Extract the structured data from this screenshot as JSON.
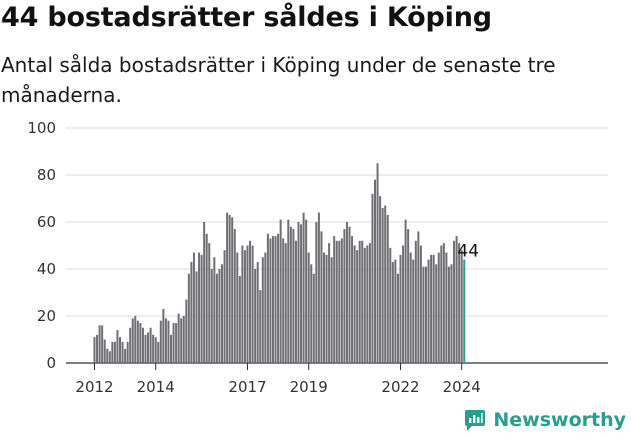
{
  "title": "44 bostadsrätter såldes i Köping",
  "subtitle": "Antal sålda bostadsrätter i Köping under de senaste tre månaderna.",
  "brand": {
    "name": "Newsworthy",
    "logo_icon": "newsworthy-chart-icon"
  },
  "colors": {
    "bar": "#6f6f73",
    "highlight": "#2a9d8f",
    "grid": "#dddddd",
    "axis": "#333333"
  },
  "chart_data": {
    "type": "bar",
    "title": "44 bostadsrätter såldes i Köping",
    "xlabel": "",
    "ylabel": "",
    "ylim": [
      0,
      100
    ],
    "yticks": [
      "0",
      "20",
      "40",
      "60",
      "80",
      "100"
    ],
    "start": "2012-01",
    "xtick_labels": [
      {
        "label": "2012",
        "month_index": 0
      },
      {
        "label": "2014",
        "month_index": 24
      },
      {
        "label": "2017",
        "month_index": 60
      },
      {
        "label": "2019",
        "month_index": 84
      },
      {
        "label": "2022",
        "month_index": 120
      },
      {
        "label": "2024",
        "month_index": 144
      }
    ],
    "last_value_label": "44",
    "values": [
      11,
      12,
      16,
      16,
      10,
      6,
      5,
      9,
      9,
      14,
      11,
      9,
      6,
      9,
      15,
      19,
      20,
      18,
      17,
      15,
      12,
      13,
      15,
      12,
      11,
      9,
      18,
      23,
      19,
      18,
      12,
      17,
      17,
      21,
      19,
      20,
      27,
      38,
      43,
      47,
      39,
      47,
      46,
      60,
      55,
      51,
      40,
      45,
      38,
      40,
      42,
      48,
      64,
      63,
      62,
      57,
      47,
      37,
      50,
      48,
      50,
      52,
      50,
      40,
      43,
      31,
      45,
      47,
      55,
      53,
      54,
      54,
      55,
      61,
      53,
      51,
      61,
      58,
      57,
      52,
      60,
      59,
      64,
      61,
      47,
      42,
      38,
      60,
      64,
      56,
      47,
      46,
      51,
      45,
      54,
      52,
      52,
      53,
      57,
      60,
      58,
      54,
      50,
      48,
      52,
      52,
      49,
      50,
      51,
      72,
      78,
      85,
      71,
      66,
      67,
      63,
      49,
      43,
      44,
      38,
      46,
      50,
      61,
      57,
      47,
      44,
      52,
      56,
      50,
      41,
      41,
      44,
      46,
      46,
      42,
      47,
      50,
      51,
      47,
      41,
      42,
      52,
      54,
      51,
      48,
      44
    ]
  }
}
